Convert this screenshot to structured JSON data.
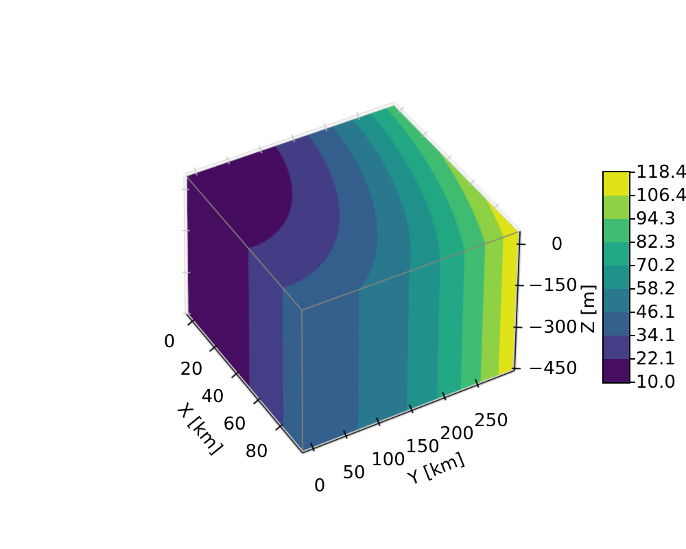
{
  "figure": {
    "background": "#ffffff",
    "description": "3D box plot with filled contour bands (viridis) drawn on the top and two visible side faces"
  },
  "chart_data": {
    "type": "contour3d-box",
    "colormap": "viridis",
    "axes": {
      "x": {
        "label": "X [km]",
        "tick_labels": [
          "0",
          "20",
          "40",
          "60",
          "80"
        ],
        "tick_values": [
          0,
          20,
          40,
          60,
          80
        ]
      },
      "y": {
        "label": "Y [km]",
        "tick_labels": [
          "0",
          "50",
          "100",
          "150",
          "200",
          "250"
        ],
        "tick_values": [
          0,
          50,
          100,
          150,
          200,
          250
        ]
      },
      "z": {
        "label": "Z [m]",
        "tick_labels": [
          "0",
          "−150",
          "−300",
          "−450"
        ],
        "tick_values": [
          0,
          -150,
          -300,
          -450
        ]
      }
    },
    "colorbar": {
      "tick_labels_top_to_bottom": [
        "118.4",
        "106.4",
        "94.3",
        "82.3",
        "70.2",
        "58.2",
        "46.1",
        "34.1",
        "22.1",
        "10.0"
      ],
      "levels_low_to_high": [
        10.0,
        22.1,
        34.1,
        46.1,
        58.2,
        70.2,
        82.3,
        94.3,
        106.4,
        118.4
      ],
      "band_colors_low_to_high": [
        "#470d60",
        "#433e85",
        "#35608d",
        "#2a788e",
        "#21918c",
        "#22a884",
        "#40bd72",
        "#8ed145",
        "#dfe318"
      ],
      "outline_color": "#000000"
    },
    "field": {
      "min": 10.0,
      "max": 118.4,
      "independent_of_z": true,
      "estimated_model": "value(sx,ty) = 10 + 32*sx^1.6 + 80*ty^2.2 - 3.6*(sx^1.6)*(ty^2.2); sx = X/Xmax, ty = Y/Ymax",
      "faces_shown": [
        "top (Z=0)",
        "left (Y=0)",
        "front-right (X=max)"
      ]
    },
    "edge_colors": {
      "axis_line": "#000000",
      "pane_edge": "#cccccc",
      "inner_box_line": "#8a8775"
    }
  }
}
